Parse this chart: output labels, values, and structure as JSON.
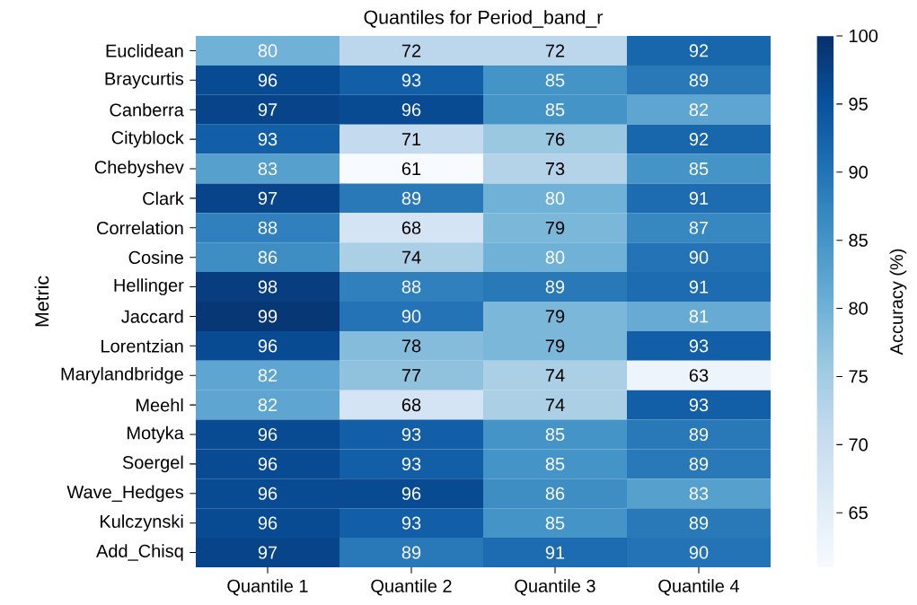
{
  "chart_data": {
    "type": "heatmap",
    "title": "Quantiles for Period_band_r",
    "ylabel": "Metric",
    "clabel": "Accuracy (%)",
    "categories": [
      "Quantile 1",
      "Quantile 2",
      "Quantile 3",
      "Quantile 4"
    ],
    "y_categories": [
      "Euclidean",
      "Braycurtis",
      "Canberra",
      "Cityblock",
      "Chebyshev",
      "Clark",
      "Correlation",
      "Cosine",
      "Hellinger",
      "Jaccard",
      "Lorentzian",
      "Marylandbridge",
      "Meehl",
      "Motyka",
      "Soergel",
      "Wave_Hedges",
      "Kulczynski",
      "Add_Chisq"
    ],
    "cells": [
      [
        80,
        72,
        72,
        92
      ],
      [
        96,
        93,
        85,
        89
      ],
      [
        97,
        96,
        85,
        82
      ],
      [
        93,
        71,
        76,
        92
      ],
      [
        83,
        61,
        73,
        85
      ],
      [
        97,
        89,
        80,
        91
      ],
      [
        88,
        68,
        79,
        87
      ],
      [
        86,
        74,
        80,
        90
      ],
      [
        98,
        88,
        89,
        91
      ],
      [
        99,
        90,
        79,
        81
      ],
      [
        96,
        78,
        79,
        93
      ],
      [
        82,
        77,
        74,
        63
      ],
      [
        82,
        68,
        74,
        93
      ],
      [
        96,
        93,
        85,
        89
      ],
      [
        96,
        93,
        85,
        89
      ],
      [
        96,
        96,
        86,
        83
      ],
      [
        96,
        93,
        85,
        89
      ],
      [
        97,
        89,
        91,
        90
      ]
    ],
    "clim": [
      61,
      100
    ],
    "cticks": [
      65,
      70,
      75,
      80,
      85,
      90,
      95,
      100
    ],
    "data_labels": true
  }
}
